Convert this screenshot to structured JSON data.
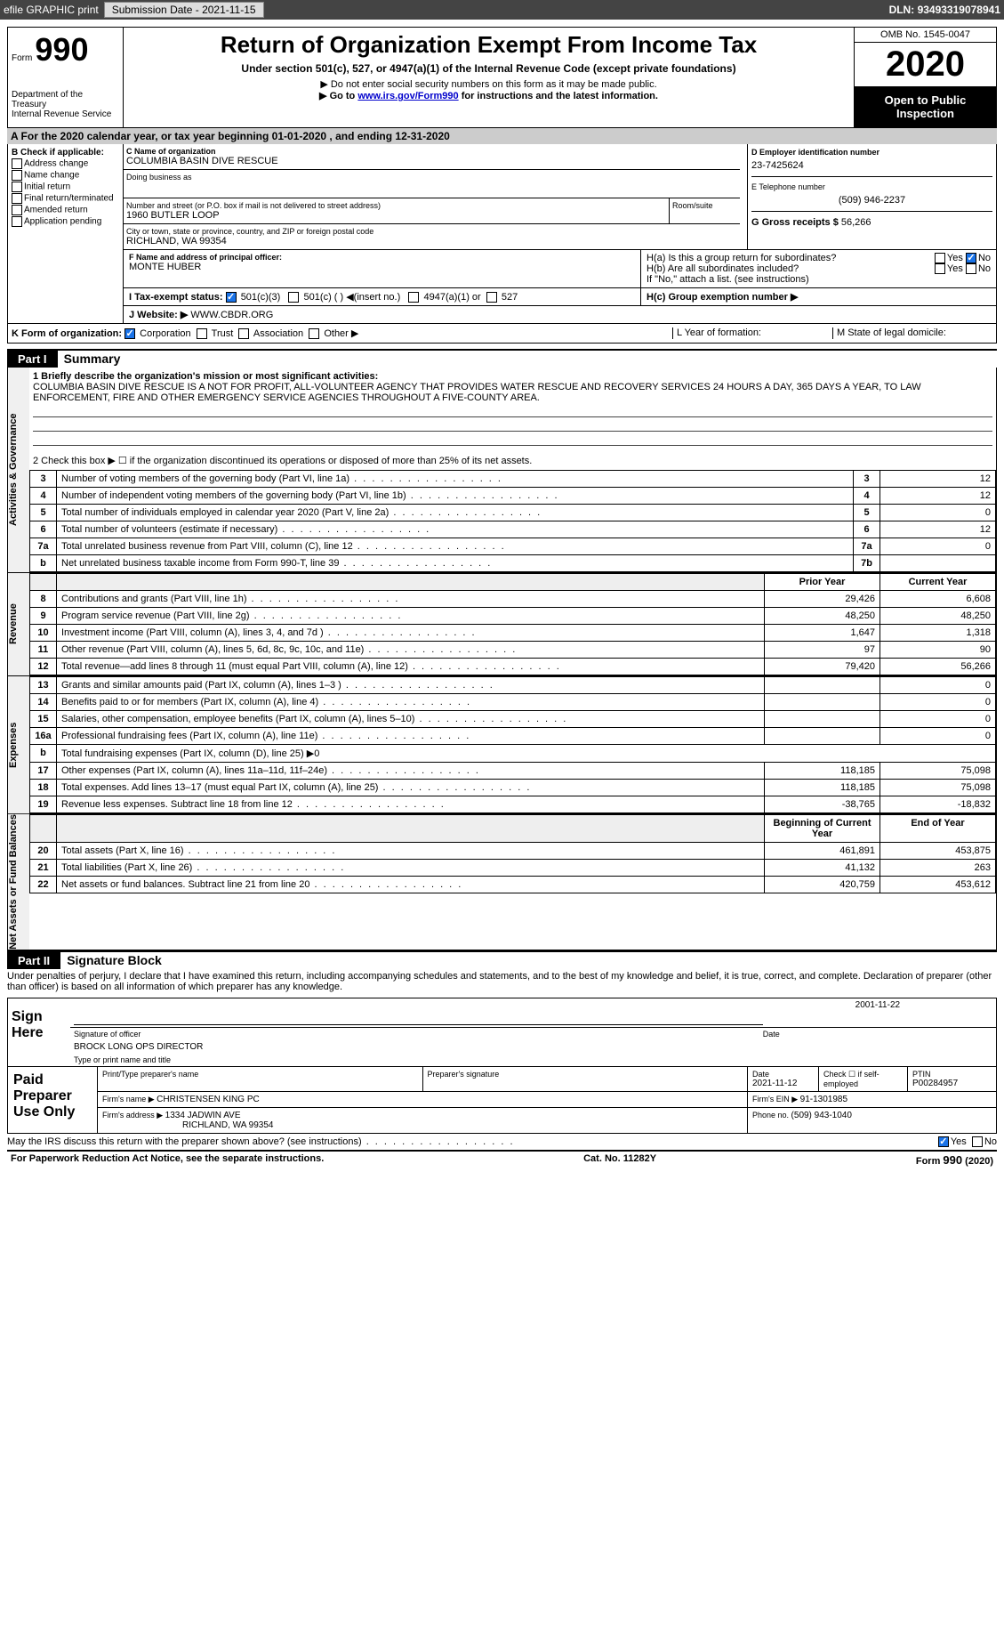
{
  "topbar": {
    "efile": "efile GRAPHIC print",
    "submission_label": "Submission Date - ",
    "submission_date": "2021-11-15",
    "dln_label": "DLN: ",
    "dln": "93493319078941"
  },
  "header": {
    "form_word": "Form",
    "form_num": "990",
    "dept1": "Department of the Treasury",
    "dept2": "Internal Revenue Service",
    "title": "Return of Organization Exempt From Income Tax",
    "sub1": "Under section 501(c), 527, or 4947(a)(1) of the Internal Revenue Code (except private foundations)",
    "sub2": "▶ Do not enter social security numbers on this form as it may be made public.",
    "sub3_pre": "▶ Go to ",
    "sub3_link": "www.irs.gov/Form990",
    "sub3_post": " for instructions and the latest information.",
    "omb": "OMB No. 1545-0047",
    "year": "2020",
    "inspection1": "Open to Public",
    "inspection2": "Inspection"
  },
  "tax_year": {
    "prefix": "A For the 2020 calendar year, or tax year beginning ",
    "begin": "01-01-2020",
    "mid": " , and ending ",
    "end": "12-31-2020"
  },
  "section_b": {
    "title": "B Check if applicable:",
    "items": [
      "Address change",
      "Name change",
      "Initial return",
      "Final return/terminated",
      "Amended return",
      "Application pending"
    ]
  },
  "section_c": {
    "name_label": "C Name of organization",
    "name": "COLUMBIA BASIN DIVE RESCUE",
    "dba_label": "Doing business as",
    "street_label": "Number and street (or P.O. box if mail is not delivered to street address)",
    "room_label": "Room/suite",
    "street": "1960 BUTLER LOOP",
    "city_label": "City or town, state or province, country, and ZIP or foreign postal code",
    "city": "RICHLAND, WA  99354"
  },
  "section_d": {
    "label": "D Employer identification number",
    "value": "23-7425624"
  },
  "section_e": {
    "label": "E Telephone number",
    "value": "(509) 946-2237"
  },
  "section_g": {
    "label": "G Gross receipts $ ",
    "value": "56,266"
  },
  "section_f": {
    "label": "F  Name and address of principal officer:",
    "value": "MONTE HUBER"
  },
  "section_h": {
    "a_label": "H(a)  Is this a group return for subordinates?",
    "b_label": "H(b)  Are all subordinates included?",
    "b_note": "If \"No,\" attach a list. (see instructions)",
    "c_label": "H(c)  Group exemption number ▶",
    "yes": "Yes",
    "no": "No"
  },
  "section_i": {
    "label": "I   Tax-exempt status:",
    "opt1": "501(c)(3)",
    "opt2": "501(c) (  ) ◀(insert no.)",
    "opt3": "4947(a)(1) or",
    "opt4": "527"
  },
  "section_j": {
    "label": "J   Website: ▶ ",
    "value": "WWW.CBDR.ORG"
  },
  "section_k": {
    "label": "K Form of organization:",
    "opts": [
      "Corporation",
      "Trust",
      "Association",
      "Other ▶"
    ]
  },
  "section_l": {
    "label": "L Year of formation:"
  },
  "section_m": {
    "label": "M State of legal domicile:"
  },
  "part1": {
    "hdr": "Part I",
    "title": "Summary",
    "line1_label": "1  Briefly describe the organization's mission or most significant activities:",
    "mission": "COLUMBIA BASIN DIVE RESCUE IS A NOT FOR PROFIT, ALL-VOLUNTEER AGENCY THAT PROVIDES WATER RESCUE AND RECOVERY SERVICES 24 HOURS A DAY, 365 DAYS A YEAR, TO LAW ENFORCEMENT, FIRE AND OTHER EMERGENCY SERVICE AGENCIES THROUGHOUT A FIVE-COUNTY AREA.",
    "line2": "2   Check this box ▶ ☐  if the organization discontinued its operations or disposed of more than 25% of its net assets.",
    "side_ag": "Activities & Governance",
    "side_rev": "Revenue",
    "side_exp": "Expenses",
    "side_net": "Net Assets or Fund Balances",
    "prior_year": "Prior Year",
    "current_year": "Current Year",
    "begin_year": "Beginning of Current Year",
    "end_year": "End of Year",
    "rows_ag": [
      {
        "n": "3",
        "t": "Number of voting members of the governing body (Part VI, line 1a)",
        "lbl": "3",
        "v": "12"
      },
      {
        "n": "4",
        "t": "Number of independent voting members of the governing body (Part VI, line 1b)",
        "lbl": "4",
        "v": "12"
      },
      {
        "n": "5",
        "t": "Total number of individuals employed in calendar year 2020 (Part V, line 2a)",
        "lbl": "5",
        "v": "0"
      },
      {
        "n": "6",
        "t": "Total number of volunteers (estimate if necessary)",
        "lbl": "6",
        "v": "12"
      },
      {
        "n": "7a",
        "t": "Total unrelated business revenue from Part VIII, column (C), line 12",
        "lbl": "7a",
        "v": "0"
      },
      {
        "n": "b",
        "t": "Net unrelated business taxable income from Form 990-T, line 39",
        "lbl": "7b",
        "v": ""
      }
    ],
    "rows_rev": [
      {
        "n": "8",
        "t": "Contributions and grants (Part VIII, line 1h)",
        "p": "29,426",
        "c": "6,608"
      },
      {
        "n": "9",
        "t": "Program service revenue (Part VIII, line 2g)",
        "p": "48,250",
        "c": "48,250"
      },
      {
        "n": "10",
        "t": "Investment income (Part VIII, column (A), lines 3, 4, and 7d )",
        "p": "1,647",
        "c": "1,318"
      },
      {
        "n": "11",
        "t": "Other revenue (Part VIII, column (A), lines 5, 6d, 8c, 9c, 10c, and 11e)",
        "p": "97",
        "c": "90"
      },
      {
        "n": "12",
        "t": "Total revenue—add lines 8 through 11 (must equal Part VIII, column (A), line 12)",
        "p": "79,420",
        "c": "56,266"
      }
    ],
    "rows_exp": [
      {
        "n": "13",
        "t": "Grants and similar amounts paid (Part IX, column (A), lines 1–3 )",
        "p": "",
        "c": "0"
      },
      {
        "n": "14",
        "t": "Benefits paid to or for members (Part IX, column (A), line 4)",
        "p": "",
        "c": "0"
      },
      {
        "n": "15",
        "t": "Salaries, other compensation, employee benefits (Part IX, column (A), lines 5–10)",
        "p": "",
        "c": "0"
      },
      {
        "n": "16a",
        "t": "Professional fundraising fees (Part IX, column (A), line 11e)",
        "p": "",
        "c": "0"
      },
      {
        "n": "b",
        "t": "Total fundraising expenses (Part IX, column (D), line 25) ▶0",
        "p": null,
        "c": null
      },
      {
        "n": "17",
        "t": "Other expenses (Part IX, column (A), lines 11a–11d, 11f–24e)",
        "p": "118,185",
        "c": "75,098"
      },
      {
        "n": "18",
        "t": "Total expenses. Add lines 13–17 (must equal Part IX, column (A), line 25)",
        "p": "118,185",
        "c": "75,098"
      },
      {
        "n": "19",
        "t": "Revenue less expenses. Subtract line 18 from line 12",
        "p": "-38,765",
        "c": "-18,832"
      }
    ],
    "rows_net": [
      {
        "n": "20",
        "t": "Total assets (Part X, line 16)",
        "p": "461,891",
        "c": "453,875"
      },
      {
        "n": "21",
        "t": "Total liabilities (Part X, line 26)",
        "p": "41,132",
        "c": "263"
      },
      {
        "n": "22",
        "t": "Net assets or fund balances. Subtract line 21 from line 20",
        "p": "420,759",
        "c": "453,612"
      }
    ]
  },
  "part2": {
    "hdr": "Part II",
    "title": "Signature Block",
    "perjury": "Under penalties of perjury, I declare that I have examined this return, including accompanying schedules and statements, and to the best of my knowledge and belief, it is true, correct, and complete. Declaration of preparer (other than officer) is based on all information of which preparer has any knowledge."
  },
  "sign": {
    "label": "Sign Here",
    "sig_label": "Signature of officer",
    "date_label": "Date",
    "date": "2001-11-22",
    "name": "BROCK LONG  OPS DIRECTOR",
    "name_label": "Type or print name and title"
  },
  "prep": {
    "label": "Paid Preparer Use Only",
    "col1": "Print/Type preparer's name",
    "col2": "Preparer's signature",
    "col3_label": "Date",
    "col3": "2021-11-12",
    "col4_label": "Check ☐ if self-employed",
    "col5_label": "PTIN",
    "col5": "P00284957",
    "firm_name_label": "Firm's name   ▶ ",
    "firm_name": "CHRISTENSEN KING PC",
    "firm_ein_label": "Firm's EIN ▶ ",
    "firm_ein": "91-1301985",
    "firm_addr_label": "Firm's address ▶ ",
    "firm_addr1": "1334 JADWIN AVE",
    "firm_addr2": "RICHLAND, WA  99354",
    "phone_label": "Phone no. ",
    "phone": "(509) 943-1040"
  },
  "may_discuss": {
    "text": "May the IRS discuss this return with the preparer shown above? (see instructions)",
    "yes": "Yes",
    "no": "No"
  },
  "footer": {
    "left": "For Paperwork Reduction Act Notice, see the separate instructions.",
    "mid": "Cat. No. 11282Y",
    "right_form": "Form ",
    "right_num": "990",
    "right_year": " (2020)"
  },
  "colors": {
    "bg": "#ffffff",
    "border": "#000000",
    "topbar_bg": "#444444",
    "side_bg": "#f0f0f0",
    "tax_year_bg": "#cccccc",
    "link": "#0000cc",
    "check_blue": "#1a73e8"
  }
}
